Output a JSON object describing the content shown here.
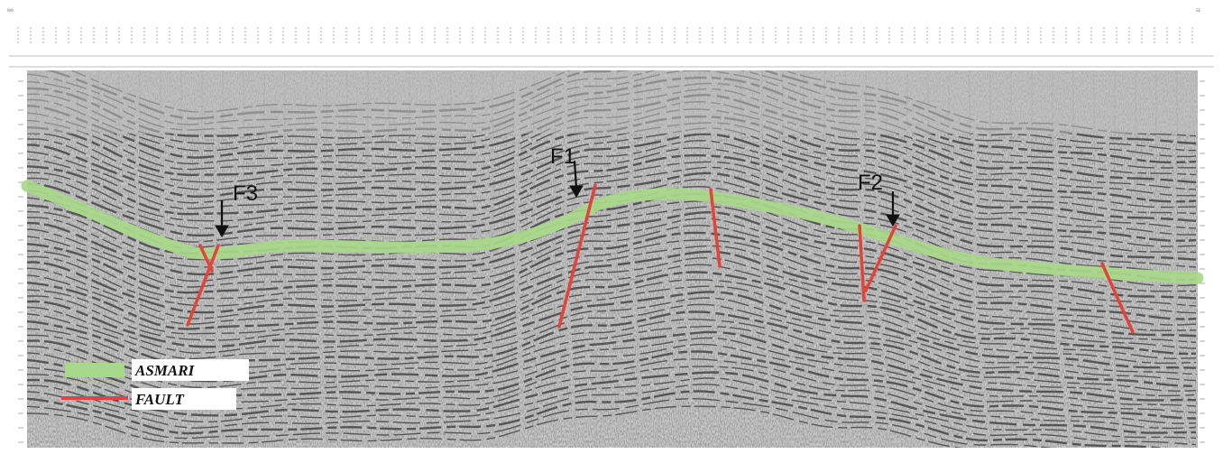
{
  "header": {
    "left_corner": "NW",
    "right_corner": "SE"
  },
  "horizon": {
    "name": "ASMARI",
    "color": "#a8d989"
  },
  "faults": {
    "color": "#e0443a",
    "labels": [
      "F3",
      "F1",
      "F2"
    ]
  },
  "legend": {
    "items": [
      {
        "label": "ASMARI",
        "swatch": "horizon"
      },
      {
        "label": "FAULT",
        "swatch": "fault"
      }
    ]
  },
  "section": {
    "background": "#c9c9c9",
    "reflector_color": "#262626"
  }
}
